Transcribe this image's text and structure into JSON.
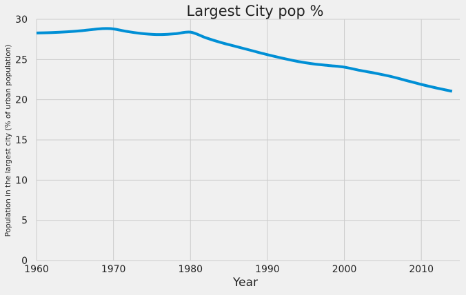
{
  "chart_data": {
    "type": "line",
    "title": "Largest City pop %",
    "xlabel": "Year",
    "ylabel": "Population in the largest city (% of urban population)",
    "xlim": [
      1960,
      2015
    ],
    "ylim": [
      0,
      30
    ],
    "x_ticks": [
      1960,
      1970,
      1980,
      1990,
      2000,
      2010
    ],
    "y_ticks": [
      0,
      5,
      10,
      15,
      20,
      25,
      30
    ],
    "grid": true,
    "series": [
      {
        "color": "#008fd5",
        "x": [
          1960,
          1962,
          1964,
          1966,
          1968,
          1969,
          1970,
          1972,
          1974,
          1976,
          1978,
          1980,
          1982,
          1984,
          1986,
          1988,
          1990,
          1992,
          1994,
          1996,
          1998,
          2000,
          2002,
          2004,
          2006,
          2008,
          2010,
          2012,
          2014
        ],
        "y": [
          28.3,
          28.35,
          28.45,
          28.6,
          28.8,
          28.85,
          28.8,
          28.45,
          28.2,
          28.1,
          28.2,
          28.4,
          27.7,
          27.1,
          26.6,
          26.1,
          25.6,
          25.15,
          24.75,
          24.45,
          24.25,
          24.05,
          23.65,
          23.3,
          22.9,
          22.4,
          21.9,
          21.45,
          21.05
        ]
      }
    ]
  }
}
